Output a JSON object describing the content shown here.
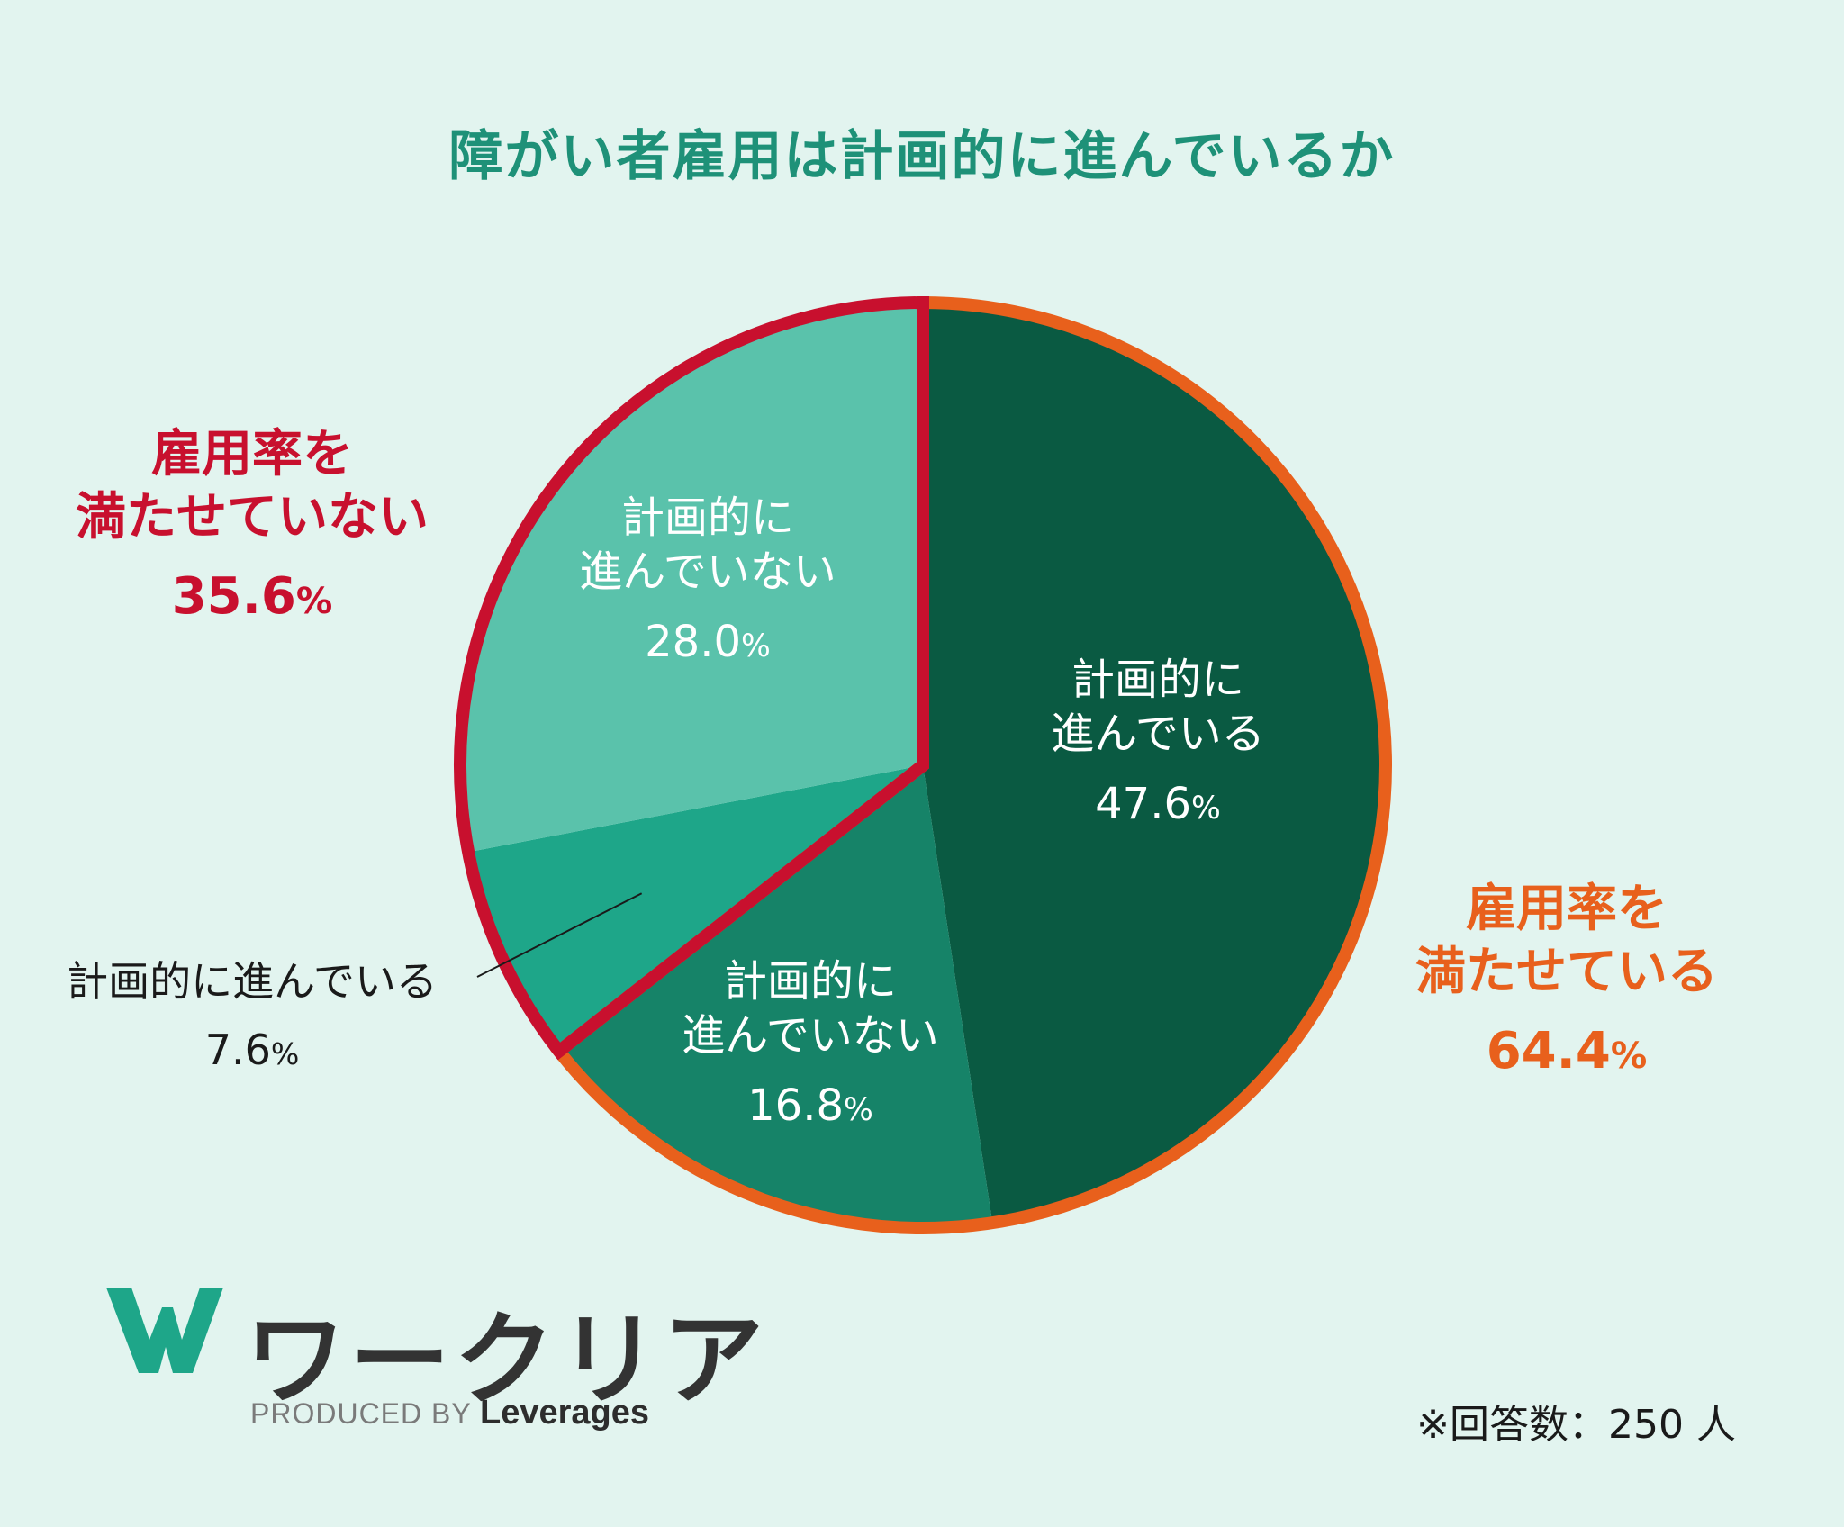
{
  "chart_data": {
    "type": "pie",
    "title": "障がい者雇用は計画的に進んでいるか",
    "slices": [
      {
        "label": "計画的に進んでいる",
        "value": 47.6,
        "group": "雇用率を満たせている",
        "color": "#0a5a42"
      },
      {
        "label": "計画的に進んでいない",
        "value": 16.8,
        "group": "雇用率を満たせている",
        "color": "#168368"
      },
      {
        "label": "計画的に進んでいる",
        "value": 7.6,
        "group": "雇用率を満たせていない",
        "color": "#1ea689"
      },
      {
        "label": "計画的に進んでいない",
        "value": 28.0,
        "group": "雇用率を満たせていない",
        "color": "#5ac2ab"
      }
    ],
    "groups": [
      {
        "label_line1": "雇用率を",
        "label_line2": "満たせている",
        "value": "64.4",
        "color": "#e8601c"
      },
      {
        "label_line1": "雇用率を",
        "label_line2": "満たせていない",
        "value": "35.6",
        "color": "#c8102e"
      }
    ],
    "slice_labels": [
      {
        "line1": "計画的に",
        "line2": "進んでいる",
        "value": "47.6"
      },
      {
        "line1": "計画的に",
        "line2": "進んでいない",
        "value": "16.8"
      },
      {
        "line1": "計画的に進んでいる",
        "line2": "",
        "value": "7.6"
      },
      {
        "line1": "計画的に",
        "line2": "進んでいない",
        "value": "28.0"
      }
    ],
    "unit": "%"
  },
  "logo": {
    "text": "ワークリア",
    "produced_by": "PRODUCED BY",
    "brand": "Leverages",
    "color": "#1ea689"
  },
  "note": "※回答数：250 人"
}
